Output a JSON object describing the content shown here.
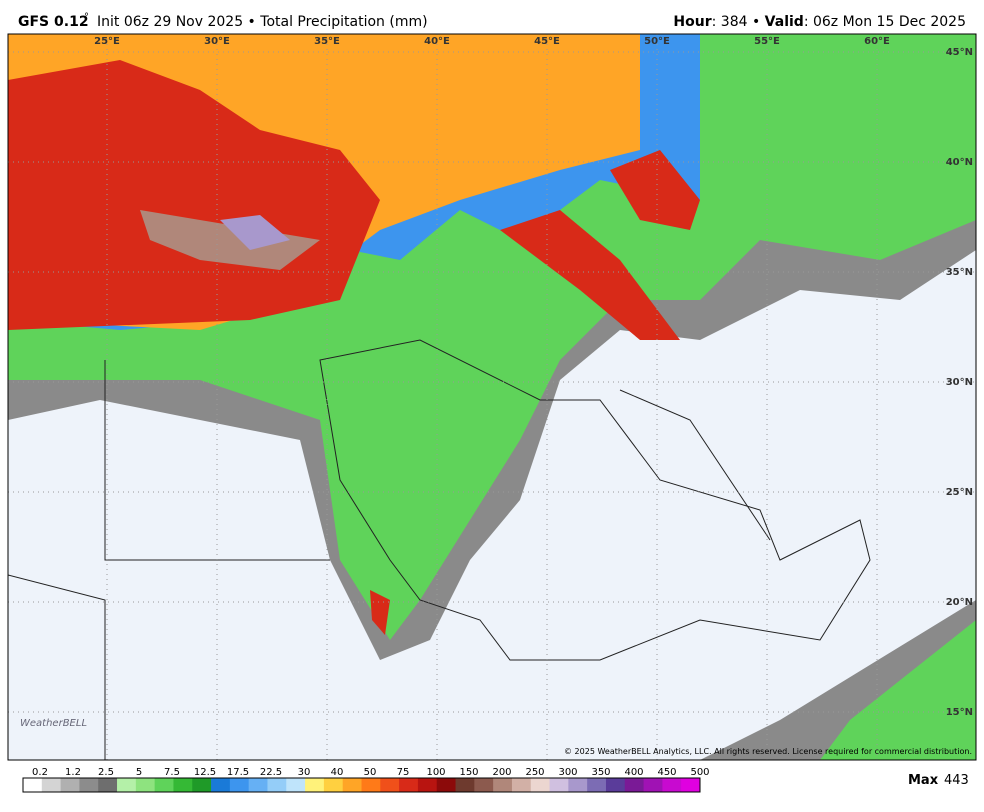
{
  "header": {
    "model": "GFS 0.12",
    "degree": "°",
    "init": "Init 06z 29 Nov 2025 • Total Precipitation (mm)",
    "hour_label": "Hour",
    "hour_value": ": 384 • ",
    "valid_label": "Valid",
    "valid_value": ": 06z Mon 15 Dec 2025"
  },
  "longitude_labels": [
    "25°E",
    "30°E",
    "35°E",
    "40°E",
    "45°E",
    "50°E",
    "55°E",
    "60°E"
  ],
  "latitude_labels": [
    "45°N",
    "40°N",
    "35°N",
    "30°N",
    "25°N",
    "20°N",
    "15°N"
  ],
  "copyright": "© 2025 WeatherBELL Analytics, LLC. All rights reserved. License required for commercial distribution.",
  "logo": "WeatherBELL",
  "legend": {
    "labels": [
      0.2,
      1.2,
      2.5,
      5,
      7.5,
      12.5,
      17.5,
      22.5,
      30,
      40,
      50,
      75,
      100,
      150,
      200,
      250,
      300,
      350,
      400,
      450,
      500
    ],
    "colors": [
      "#ffffff",
      "#d4d4d4",
      "#b0b0b0",
      "#8c8c8c",
      "#6e6e6e",
      "#b4f0a8",
      "#8ee37f",
      "#5fd35a",
      "#35b935",
      "#1f9a28",
      "#1a7ad8",
      "#3d95ee",
      "#66b0f4",
      "#94cdf8",
      "#bfe4fb",
      "#fff27a",
      "#ffd040",
      "#ffa526",
      "#ff7a18",
      "#f0501a",
      "#d82a18",
      "#b81410",
      "#8c0a0a",
      "#6e3a2e",
      "#8c5a4e",
      "#b0877a",
      "#d2b0a6",
      "#ecd6d0",
      "#d0c0e0",
      "#a898cc",
      "#7c6cb4",
      "#5a3c9a",
      "#7a1a96",
      "#a012b4",
      "#c80ad0",
      "#e000e0"
    ]
  },
  "max_label": "Max",
  "max_value": 443
}
